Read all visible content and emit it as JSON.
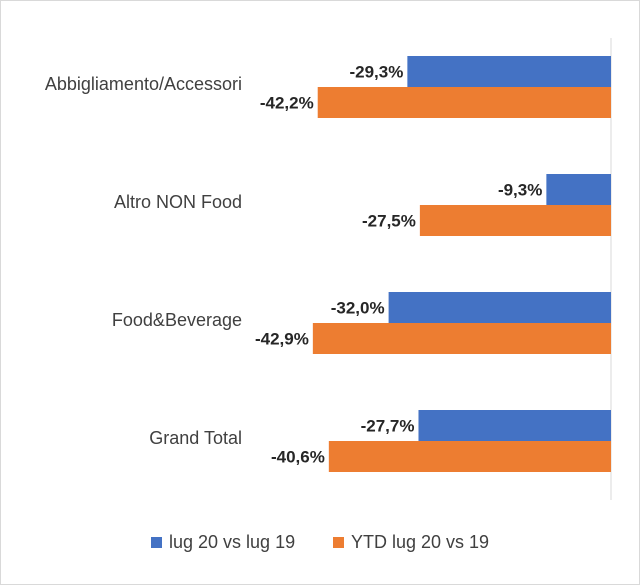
{
  "chart_data": {
    "type": "bar",
    "orientation": "horizontal",
    "categories": [
      "Abbigliamento/Accessori",
      "Altro NON Food",
      "Food&Beverage",
      "Grand Total"
    ],
    "series": [
      {
        "name": "lug 20 vs lug 19",
        "color": "#4472c4",
        "values": [
          -29.3,
          -9.3,
          -32.0,
          -27.7
        ],
        "labels": [
          "-29,3%",
          "-9,3%",
          "-32,0%",
          "-27,7%"
        ]
      },
      {
        "name": "YTD lug 20 vs 19",
        "color": "#ed7d31",
        "values": [
          -42.2,
          -27.5,
          -42.9,
          -40.6
        ],
        "labels": [
          "-42,2%",
          "-27,5%",
          "-42,9%",
          "-40,6%"
        ]
      }
    ],
    "xlim": [
      -45,
      0
    ],
    "grid": false,
    "legend_position": "bottom"
  }
}
